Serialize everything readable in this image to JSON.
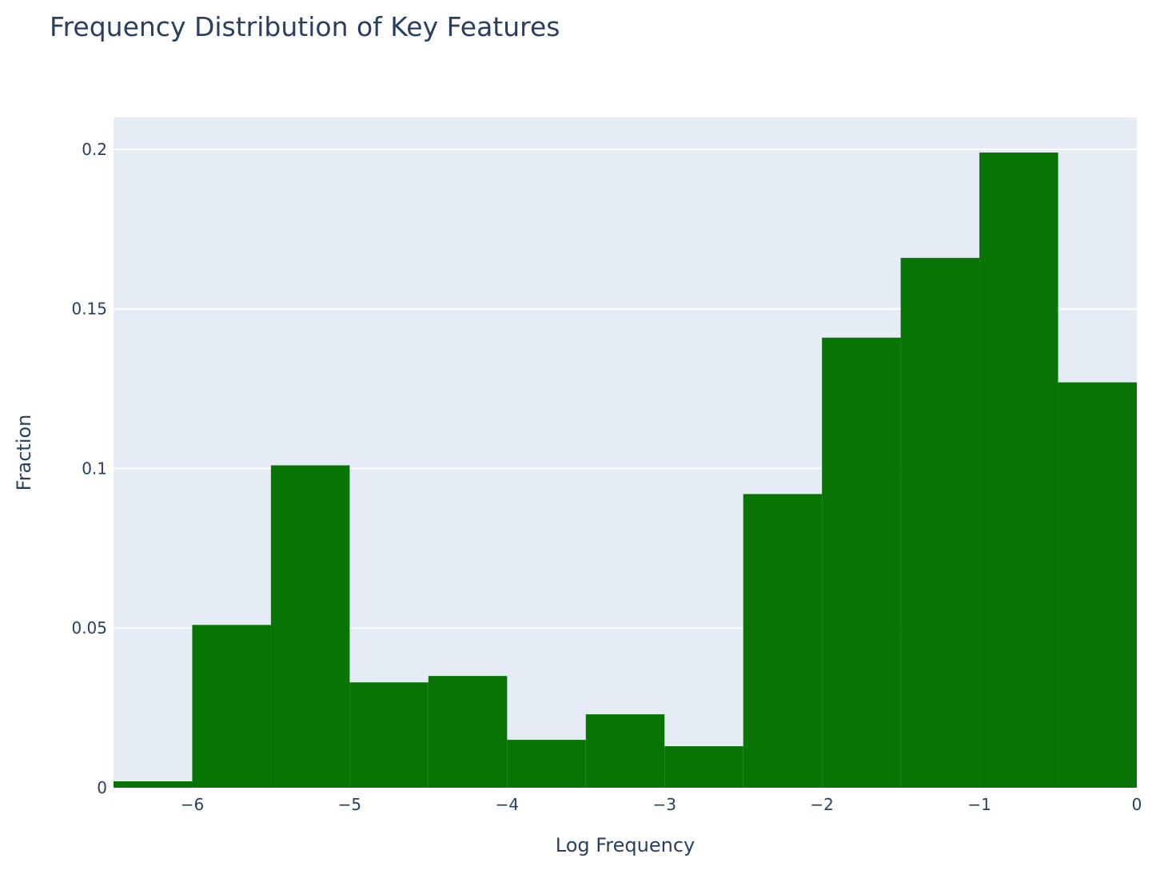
{
  "chart_data": {
    "type": "bar",
    "subtype": "histogram",
    "title": "Frequency Distribution of Key Features",
    "xlabel": "Log Frequency",
    "ylabel": "Fraction",
    "bins": [
      {
        "x0": -6.5,
        "x1": -6.0,
        "value": 0.002
      },
      {
        "x0": -6.0,
        "x1": -5.5,
        "value": 0.051
      },
      {
        "x0": -5.5,
        "x1": -5.0,
        "value": 0.101
      },
      {
        "x0": -5.0,
        "x1": -4.5,
        "value": 0.033
      },
      {
        "x0": -4.5,
        "x1": -4.0,
        "value": 0.035
      },
      {
        "x0": -4.0,
        "x1": -3.5,
        "value": 0.015
      },
      {
        "x0": -3.5,
        "x1": -3.0,
        "value": 0.023
      },
      {
        "x0": -3.0,
        "x1": -2.5,
        "value": 0.013
      },
      {
        "x0": -2.5,
        "x1": -2.0,
        "value": 0.092
      },
      {
        "x0": -2.0,
        "x1": -1.5,
        "value": 0.141
      },
      {
        "x0": -1.5,
        "x1": -1.0,
        "value": 0.166
      },
      {
        "x0": -1.0,
        "x1": -0.5,
        "value": 0.199
      },
      {
        "x0": -0.5,
        "x1": 0.0,
        "value": 0.127
      }
    ],
    "xlim": [
      -6.5,
      0
    ],
    "ylim": [
      0,
      0.21
    ],
    "xticks": [
      {
        "value": -6,
        "label": "−6"
      },
      {
        "value": -5,
        "label": "−5"
      },
      {
        "value": -4,
        "label": "−4"
      },
      {
        "value": -3,
        "label": "−3"
      },
      {
        "value": -2,
        "label": "−2"
      },
      {
        "value": -1,
        "label": "−1"
      },
      {
        "value": 0,
        "label": "0"
      }
    ],
    "yticks": [
      {
        "value": 0,
        "label": "0"
      },
      {
        "value": 0.05,
        "label": "0.05"
      },
      {
        "value": 0.1,
        "label": "0.1"
      },
      {
        "value": 0.15,
        "label": "0.15"
      },
      {
        "value": 0.2,
        "label": "0.2"
      }
    ],
    "grid": true,
    "colors": {
      "bar": "#087404",
      "plot_background": "#e5ecf6",
      "grid": "#ffffff",
      "text": "#2a3f5f"
    }
  }
}
